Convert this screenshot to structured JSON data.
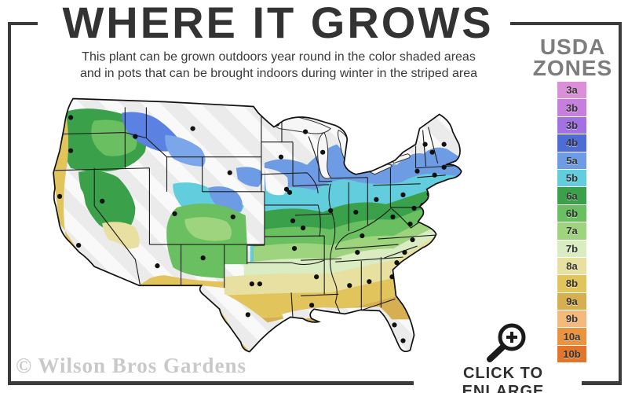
{
  "header": {
    "title": "WHERE IT GROWS",
    "subtitle_line1": "This plant can be grown outdoors year round in the color shaded areas",
    "subtitle_line2": "and in pots that can be brought indoors during winter in the striped area"
  },
  "legend": {
    "title_line1": "USDA",
    "title_line2": "ZONES",
    "zones": [
      {
        "label": "3a",
        "color": "#da8fd8"
      },
      {
        "label": "3b",
        "color": "#c77fdd"
      },
      {
        "label": "3b",
        "color": "#a272e5"
      },
      {
        "label": "4b",
        "color": "#4e6cd6"
      },
      {
        "label": "5a",
        "color": "#6e9ce4"
      },
      {
        "label": "5b",
        "color": "#62cddc"
      },
      {
        "label": "6a",
        "color": "#3aa04a"
      },
      {
        "label": "6b",
        "color": "#6abf60"
      },
      {
        "label": "7a",
        "color": "#9ed47e"
      },
      {
        "label": "7b",
        "color": "#d9ecc2"
      },
      {
        "label": "8a",
        "color": "#e8e0a0"
      },
      {
        "label": "8b",
        "color": "#e2c45c"
      },
      {
        "label": "9a",
        "color": "#d6b050"
      },
      {
        "label": "9b",
        "color": "#f4b97c"
      },
      {
        "label": "10a",
        "color": "#ea9440"
      },
      {
        "label": "10b",
        "color": "#e0762b"
      }
    ]
  },
  "map": {
    "watermark": "© Wilson Bros Gardens",
    "striped_area_color": "#ebebeb",
    "border_color": "#3b3b3b"
  },
  "footer": {
    "enlarge_label": "CLICK TO ENLARGE"
  }
}
